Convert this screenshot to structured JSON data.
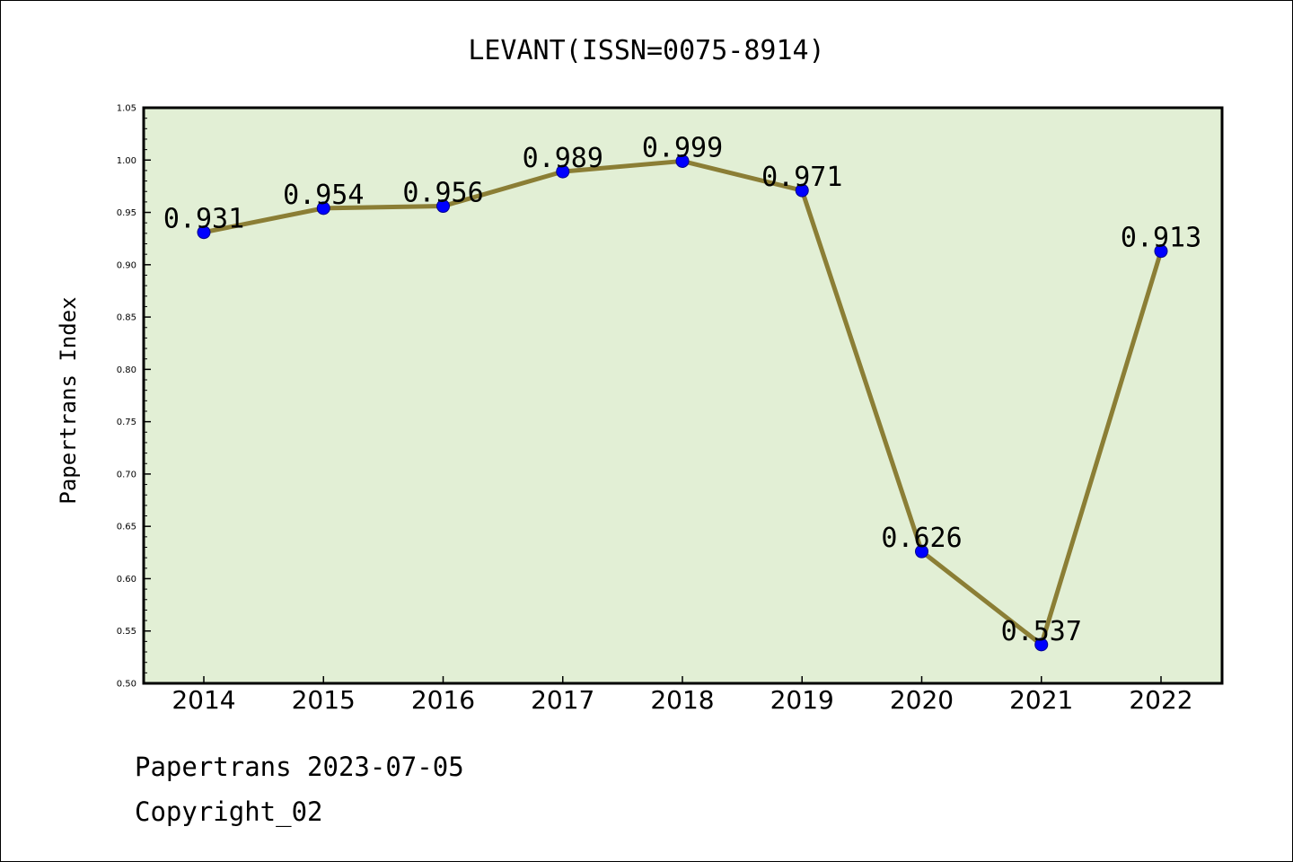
{
  "chart_data": {
    "type": "line",
    "title": "LEVANT(ISSN=0075-8914)",
    "xlabel": "",
    "ylabel": "Papertrans Index",
    "categories": [
      "2014",
      "2015",
      "2016",
      "2017",
      "2018",
      "2019",
      "2020",
      "2021",
      "2022"
    ],
    "values": [
      0.931,
      0.954,
      0.956,
      0.989,
      0.999,
      0.971,
      0.626,
      0.537,
      0.913
    ],
    "data_labels": [
      "0.931",
      "0.954",
      "0.956",
      "0.989",
      "0.999",
      "0.971",
      "0.626",
      "0.537",
      "0.913"
    ],
    "ylim": [
      0.5,
      1.05
    ],
    "yticks": [
      "0.50",
      "0.55",
      "0.60",
      "0.65",
      "0.70",
      "0.75",
      "0.80",
      "0.85",
      "0.90",
      "0.95",
      "1.00",
      "1.05"
    ],
    "grid": false,
    "legend": "none",
    "colors": {
      "plot_background": "#e2efd5",
      "line": "#8b7e35",
      "marker_fill": "#0000ff",
      "marker_edge": "#00008b"
    }
  },
  "footer": {
    "source": "Papertrans 2023-07-05",
    "copyright": "Copyright_02"
  }
}
